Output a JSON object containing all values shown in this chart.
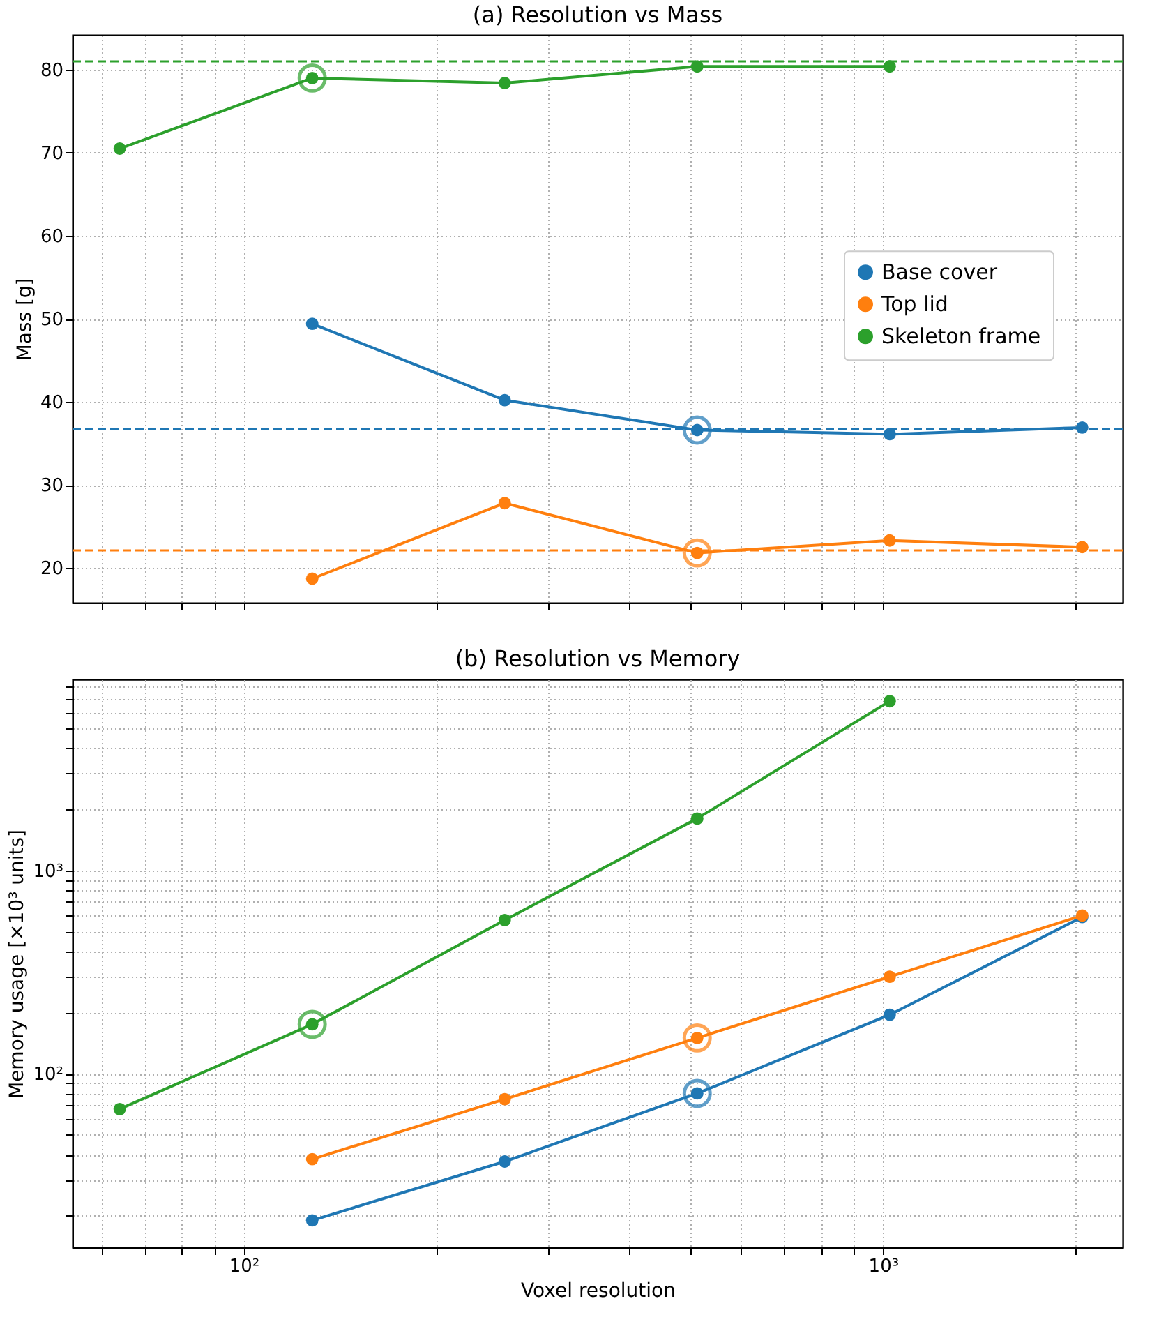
{
  "chart_data": [
    {
      "type": "line",
      "title": "(a) Resolution vs Mass",
      "ylabel": "Mass [g]",
      "log": "x",
      "grid": true,
      "legend": "right",
      "marker": "circle",
      "line_style": "solid",
      "tick_labels": "y",
      "xlim": [
        54,
        2370
      ],
      "xticks": [
        {
          "value": 60,
          "label": null
        },
        {
          "value": 70,
          "label": null
        },
        {
          "value": 80,
          "label": null
        },
        {
          "value": 90,
          "label": null
        },
        {
          "value": 100,
          "label": "10²"
        },
        {
          "value": 200,
          "label": null
        },
        {
          "value": 300,
          "label": null
        },
        {
          "value": 400,
          "label": null
        },
        {
          "value": 500,
          "label": null
        },
        {
          "value": 600,
          "label": null
        },
        {
          "value": 700,
          "label": null
        },
        {
          "value": 800,
          "label": null
        },
        {
          "value": 900,
          "label": null
        },
        {
          "value": 1000,
          "label": "10³"
        },
        {
          "value": 2000,
          "label": null
        }
      ],
      "ylim": [
        15.8,
        84.2
      ],
      "yticks": [
        20,
        30,
        40,
        50,
        60,
        70,
        80
      ],
      "series": [
        {
          "name": "Base cover",
          "color": "#1f77b4",
          "x": [
            128,
            256,
            512,
            1024,
            2048
          ],
          "values": [
            49.4,
            40.2,
            36.6,
            36.1,
            36.9
          ]
        },
        {
          "name": "Top lid",
          "color": "#ff7f0e",
          "x": [
            128,
            256,
            512,
            1024,
            2048
          ],
          "values": [
            18.7,
            27.8,
            21.8,
            23.3,
            22.5
          ]
        },
        {
          "name": "Skeleton frame",
          "color": "#2ca02c",
          "x": [
            64,
            128,
            256,
            512,
            1024
          ],
          "values": [
            70.5,
            79.0,
            78.4,
            80.4,
            80.4
          ]
        },
        {
          "type": "scatter",
          "color": "#1f77b4",
          "x": [
            512
          ],
          "values": [
            36.6
          ]
        },
        {
          "type": "scatter",
          "color": "#ff7f0e",
          "x": [
            512
          ],
          "values": [
            21.8
          ]
        },
        {
          "type": "scatter",
          "color": "#2ca02c",
          "x": [
            128
          ],
          "values": [
            79.0
          ]
        }
      ],
      "ref_lines": [
        {
          "axis": "y",
          "value": 81.0,
          "color": "#2ca02c",
          "line_style": "dashed"
        },
        {
          "axis": "y",
          "value": 36.7,
          "color": "#1f77b4",
          "line_style": "dashed"
        },
        {
          "axis": "y",
          "value": 22.1,
          "color": "#ff7f0e",
          "line_style": "dashed"
        }
      ]
    },
    {
      "type": "line",
      "title": "(b) Resolution vs Memory",
      "xlabel": "Voxel resolution",
      "ylabel": "Memory usage [×10³ units]",
      "log": "xy",
      "grid": true,
      "legend": "top left",
      "marker": "circle",
      "line_style": "solid",
      "xlim": [
        54,
        2370
      ],
      "xticks": [
        {
          "value": 60,
          "label": null
        },
        {
          "value": 70,
          "label": null
        },
        {
          "value": 80,
          "label": null
        },
        {
          "value": 90,
          "label": null
        },
        {
          "value": 100,
          "label": "10²"
        },
        {
          "value": 200,
          "label": null
        },
        {
          "value": 300,
          "label": null
        },
        {
          "value": 400,
          "label": null
        },
        {
          "value": 500,
          "label": null
        },
        {
          "value": 600,
          "label": null
        },
        {
          "value": 700,
          "label": null
        },
        {
          "value": 800,
          "label": null
        },
        {
          "value": 900,
          "label": null
        },
        {
          "value": 1000,
          "label": "10³"
        },
        {
          "value": 2000,
          "label": null
        }
      ],
      "ylim": [
        14,
        8700
      ],
      "yticks": [
        {
          "value": 20,
          "label": null
        },
        {
          "value": 30,
          "label": null
        },
        {
          "value": 40,
          "label": null
        },
        {
          "value": 50,
          "label": null
        },
        {
          "value": 60,
          "label": null
        },
        {
          "value": 70,
          "label": null
        },
        {
          "value": 80,
          "label": null
        },
        {
          "value": 90,
          "label": null
        },
        {
          "value": 100,
          "label": "10²"
        },
        {
          "value": 200,
          "label": null
        },
        {
          "value": 300,
          "label": null
        },
        {
          "value": 400,
          "label": null
        },
        {
          "value": 500,
          "label": null
        },
        {
          "value": 600,
          "label": null
        },
        {
          "value": 700,
          "label": null
        },
        {
          "value": 800,
          "label": null
        },
        {
          "value": 900,
          "label": null
        },
        {
          "value": 1000,
          "label": "10³"
        },
        {
          "value": 2000,
          "label": null
        },
        {
          "value": 3000,
          "label": null
        },
        {
          "value": 4000,
          "label": null
        },
        {
          "value": 5000,
          "label": null
        },
        {
          "value": 6000,
          "label": null
        },
        {
          "value": 7000,
          "label": null
        },
        {
          "value": 8000,
          "label": null
        }
      ],
      "series": [
        {
          "name": "Base cover",
          "color": "#1f77b4",
          "x": [
            128,
            256,
            512,
            1024,
            2048
          ],
          "values": [
            19,
            37,
            80,
            195,
            590
          ]
        },
        {
          "name": "Top lid",
          "color": "#ff7f0e",
          "x": [
            128,
            256,
            512,
            1024,
            2048
          ],
          "values": [
            38,
            75,
            150,
            300,
            600
          ]
        },
        {
          "name": "Skeleton frame",
          "color": "#2ca02c",
          "x": [
            64,
            128,
            256,
            512,
            1024
          ],
          "values": [
            67,
            175,
            570,
            1800,
            6800
          ]
        },
        {
          "type": "scatter",
          "color": "#1f77b4",
          "x": [
            512
          ],
          "values": [
            80
          ]
        },
        {
          "type": "scatter",
          "color": "#ff7f0e",
          "x": [
            512
          ],
          "values": [
            150
          ]
        },
        {
          "type": "scatter",
          "color": "#2ca02c",
          "x": [
            128
          ],
          "values": [
            175
          ]
        }
      ]
    }
  ]
}
